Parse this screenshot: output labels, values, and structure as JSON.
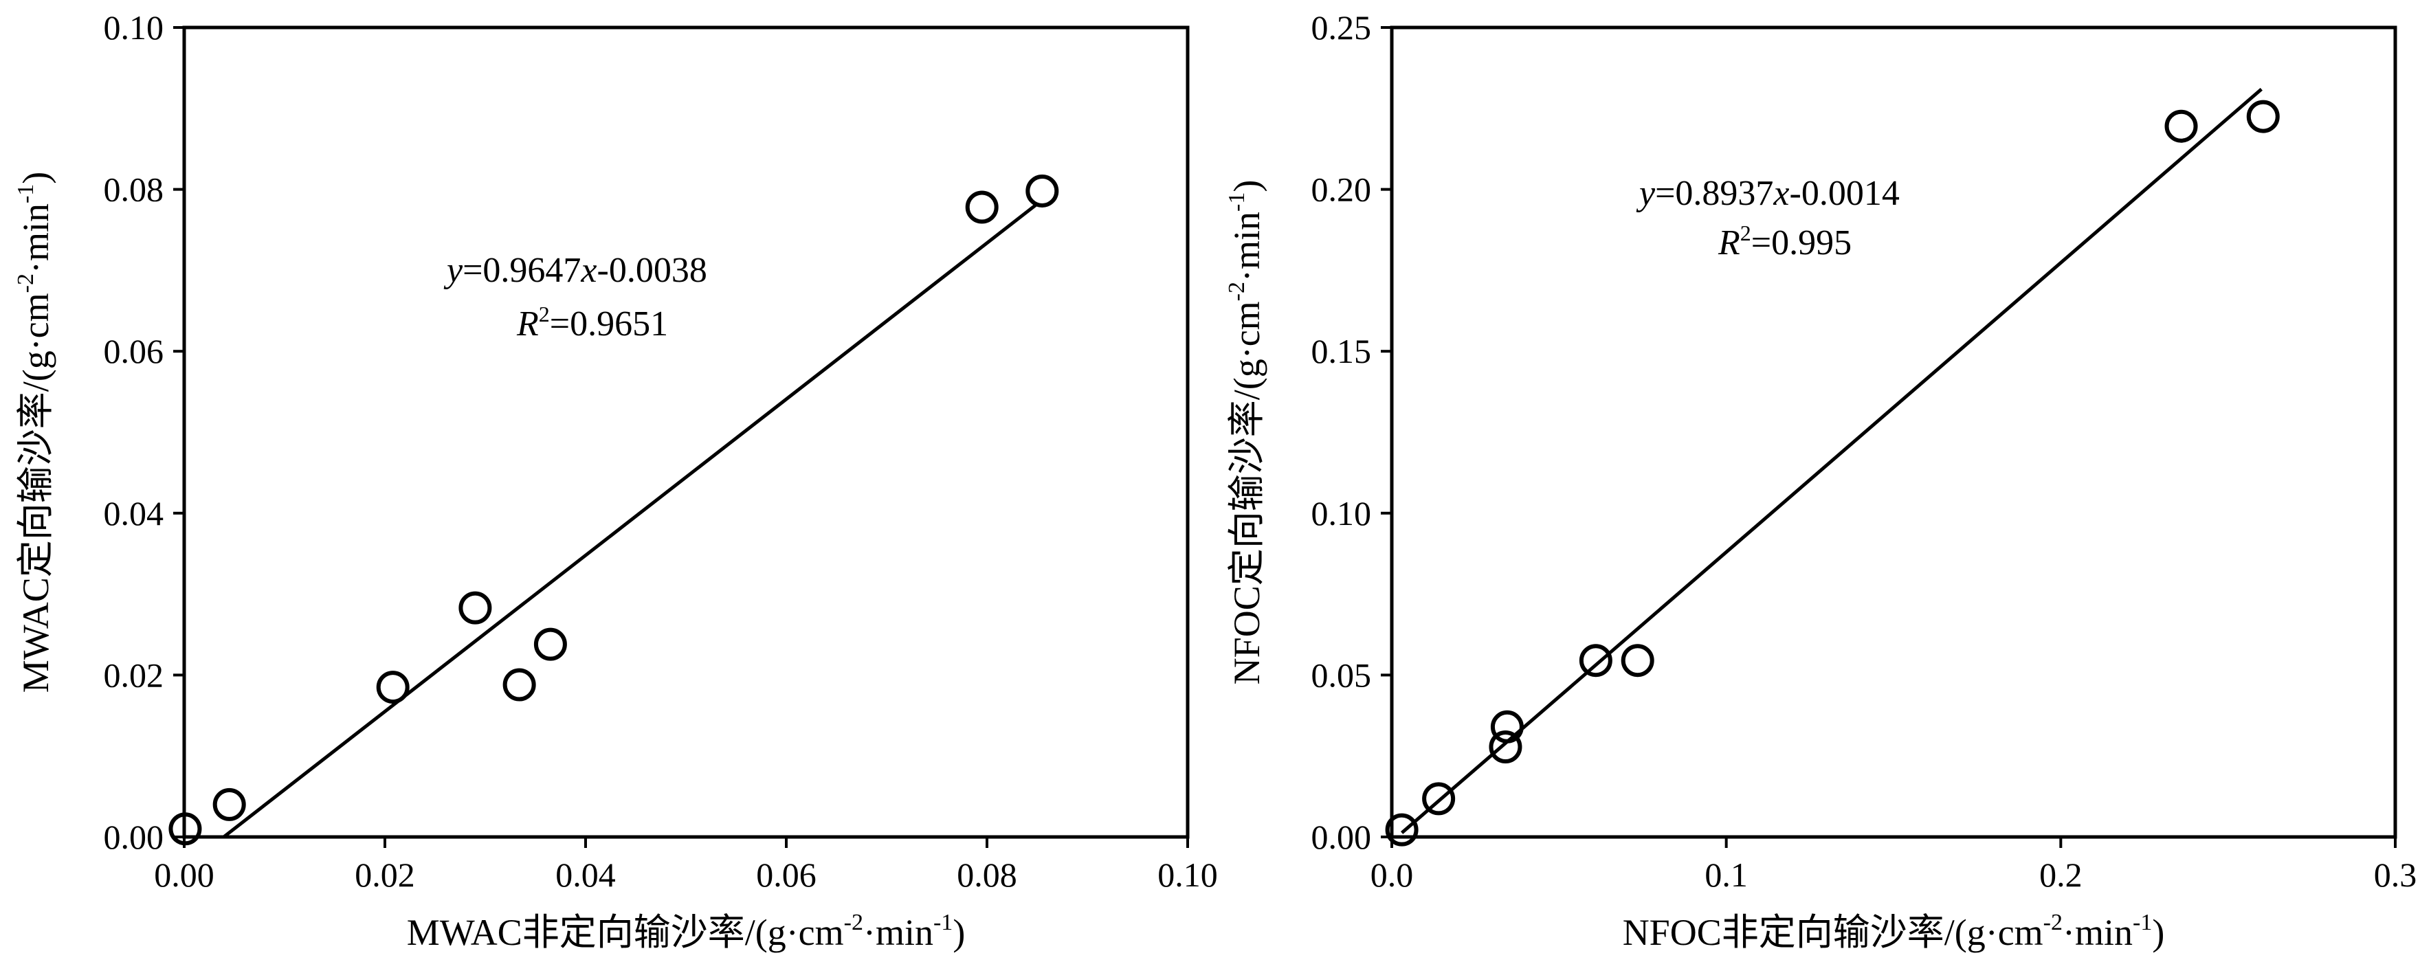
{
  "chart_data": [
    {
      "type": "scatter",
      "xlabel": "MWAC非定向输沙率/(g·cm-2·min-1)",
      "xlabel_main": "MWAC非定向输沙率/(g·cm",
      "xlabel_sup1": "-2",
      "xlabel_mid": "·min",
      "xlabel_sup2": "-1",
      "xlabel_end": ")",
      "ylabel": "MWAC定向输沙率/(g·cm-2·min-1)",
      "ylabel_main": "MWAC定向输沙率/(g·cm",
      "ylabel_sup1": "-2",
      "ylabel_mid": "·min",
      "ylabel_sup2": "-1",
      "ylabel_end": ")",
      "xlim": [
        0,
        0.1
      ],
      "ylim": [
        0,
        0.1
      ],
      "xticks": [
        0,
        0.02,
        0.04,
        0.06,
        0.08,
        0.1
      ],
      "xtick_labels": [
        "0.00",
        "0.02",
        "0.04",
        "0.06",
        "0.08",
        "0.10"
      ],
      "yticks": [
        0,
        0.02,
        0.04,
        0.06,
        0.08,
        0.1
      ],
      "ytick_labels": [
        "0.00",
        "0.02",
        "0.04",
        "0.06",
        "0.08",
        "0.10"
      ],
      "points": [
        {
          "x": 0.0001,
          "y": 0.001
        },
        {
          "x": 0.0045,
          "y": 0.004
        },
        {
          "x": 0.0208,
          "y": 0.0185
        },
        {
          "x": 0.029,
          "y": 0.0283
        },
        {
          "x": 0.0334,
          "y": 0.0188
        },
        {
          "x": 0.0365,
          "y": 0.0238
        },
        {
          "x": 0.0795,
          "y": 0.0778
        },
        {
          "x": 0.0855,
          "y": 0.0798
        }
      ],
      "fit": {
        "slope": 0.9647,
        "intercept": -0.0038,
        "x_range": [
          0.004,
          0.085
        ]
      },
      "equation": {
        "y": "y",
        "rest": "=0.9647",
        "x": "x",
        "tail": "-0.0038"
      },
      "r2": {
        "r": "R",
        "sup": "2",
        "value": "=0.9651"
      }
    },
    {
      "type": "scatter",
      "xlabel": "NFOC非定向输沙率/(g·cm-2·min-1)",
      "xlabel_main": "NFOC非定向输沙率/(g·cm",
      "xlabel_sup1": "-2",
      "xlabel_mid": "·min",
      "xlabel_sup2": "-1",
      "xlabel_end": ")",
      "ylabel": "NFOC定向输沙率/(g·cm-2·min-1)",
      "ylabel_main": "NFOC定向输沙率/(g·cm",
      "ylabel_sup1": "-2",
      "ylabel_mid": "·min",
      "ylabel_sup2": "-1",
      "ylabel_end": ")",
      "xlim": [
        0,
        0.3
      ],
      "ylim": [
        0,
        0.25
      ],
      "xticks": [
        0,
        0.1,
        0.2,
        0.3
      ],
      "xtick_labels": [
        "0.0",
        "0.1",
        "0.2",
        "0.3"
      ],
      "yticks": [
        0,
        0.05,
        0.1,
        0.15,
        0.2,
        0.25
      ],
      "ytick_labels": [
        "0.00",
        "0.05",
        "0.10",
        "0.15",
        "0.20",
        "0.25"
      ],
      "points": [
        {
          "x": 0.003,
          "y": 0.0022
        },
        {
          "x": 0.014,
          "y": 0.0118
        },
        {
          "x": 0.034,
          "y": 0.0278
        },
        {
          "x": 0.0345,
          "y": 0.034
        },
        {
          "x": 0.061,
          "y": 0.0545
        },
        {
          "x": 0.0735,
          "y": 0.0545
        },
        {
          "x": 0.236,
          "y": 0.2195
        },
        {
          "x": 0.2605,
          "y": 0.2225
        }
      ],
      "fit": {
        "slope": 0.8937,
        "intercept": -0.0014,
        "x_range": [
          0.003,
          0.26
        ]
      },
      "equation": {
        "y": "y",
        "rest": "=0.8937",
        "x": "x",
        "tail": "-0.0014"
      },
      "r2": {
        "r": "R",
        "sup": "2",
        "value": "=0.995"
      }
    }
  ]
}
